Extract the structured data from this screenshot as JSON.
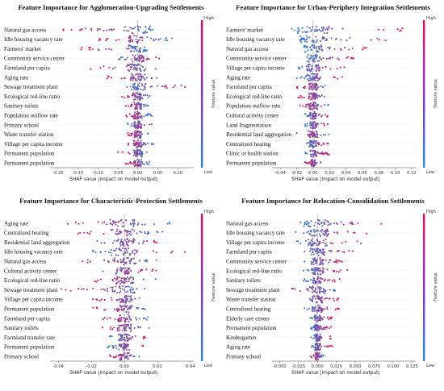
{
  "colors": {
    "low": "#1e88e5",
    "high": "#ff0052"
  },
  "colorbar": {
    "high_label": "High",
    "low_label": "Low",
    "title": "Feature value"
  },
  "chart_data": [
    {
      "type": "scatter",
      "subtype": "shap-beeswarm",
      "title": "Feature Importance for Agglomeration-Upgrading Settlements",
      "xlabel": "SHAP value (impact on model output)",
      "xlim": [
        -0.22,
        0.14
      ],
      "xticks": [
        "-0.20",
        "-0.15",
        "-0.10",
        "-0.05",
        "0.00",
        "0.05",
        "0.10"
      ],
      "tick_values": [
        -0.2,
        -0.15,
        -0.1,
        -0.05,
        0.0,
        0.05,
        0.1
      ],
      "features": [
        "Natural gas access",
        "Idle housing vacancy rate",
        "Farmers' market",
        "Community service center",
        "Farmland per capita",
        "Aging rate",
        "Sewage treatment plant",
        "Ecological red-line ratio",
        "Sanitary toilets",
        "Population outflow rate",
        "Primary school",
        "Waste transfer station",
        "Village per capita income",
        "Permanent population",
        "Permanent population"
      ],
      "spread": [
        [
          -0.2,
          0.05
        ],
        [
          -0.1,
          0.09
        ],
        [
          -0.15,
          0.03
        ],
        [
          -0.05,
          0.06
        ],
        [
          -0.12,
          0.05
        ],
        [
          -0.08,
          0.06
        ],
        [
          -0.03,
          0.12
        ],
        [
          -0.05,
          0.04
        ],
        [
          -0.04,
          0.03
        ],
        [
          -0.04,
          0.04
        ],
        [
          -0.03,
          0.04
        ],
        [
          -0.03,
          0.03
        ],
        [
          -0.04,
          0.04
        ],
        [
          -0.05,
          0.03
        ],
        [
          -0.03,
          0.03
        ]
      ]
    },
    {
      "type": "scatter",
      "subtype": "shap-beeswarm",
      "title": "Feature Importance for Urban-Periphery Integration Settlements",
      "xlabel": "SHAP value (impact on model output)",
      "xlim": [
        -0.05,
        0.125
      ],
      "xticks": [
        "-0.04",
        "-0.02",
        "0.00",
        "0.02",
        "0.04",
        "0.06",
        "0.08",
        "0.10",
        "0.12"
      ],
      "tick_values": [
        -0.04,
        -0.02,
        0.0,
        0.02,
        0.04,
        0.06,
        0.08,
        0.1,
        0.12
      ],
      "features": [
        "Farmers' market",
        "Idle housing vacancy rate",
        "Natural gas access",
        "Community service center",
        "Village per capita income",
        "Aging rate",
        "Farmland per capita",
        "Ecological red-line ratio",
        "Population outflow rate",
        "Cultural activity center",
        "Land fragmentation",
        "Residential land aggregation",
        "Centralized heating",
        "Clinic or health station",
        "Permanent population"
      ],
      "spread": [
        [
          -0.03,
          0.11
        ],
        [
          -0.02,
          0.1
        ],
        [
          -0.01,
          0.07
        ],
        [
          -0.01,
          0.05
        ],
        [
          -0.02,
          0.04
        ],
        [
          -0.02,
          0.04
        ],
        [
          -0.02,
          0.02
        ],
        [
          -0.02,
          0.02
        ],
        [
          -0.02,
          0.02
        ],
        [
          -0.01,
          0.02
        ],
        [
          -0.01,
          0.02
        ],
        [
          -0.02,
          0.02
        ],
        [
          -0.01,
          0.02
        ],
        [
          -0.01,
          0.02
        ],
        [
          -0.01,
          0.01
        ]
      ]
    },
    {
      "type": "scatter",
      "subtype": "shap-beeswarm",
      "title": "Feature Importance for Characteristic-Protection Settlements",
      "xlabel": "SHAP value (impact on model output)",
      "xlim": [
        -0.045,
        0.042
      ],
      "xticks": [
        "-0.04",
        "-0.02",
        "0.00",
        "0.02",
        "0.04"
      ],
      "tick_values": [
        -0.04,
        -0.02,
        0.0,
        0.02,
        0.04
      ],
      "features": [
        "Aging rate",
        "Centralized heating",
        "Residential land aggregation",
        "Idle housing vacancy rate",
        "Natural gas access",
        "Cultural activity center",
        "Ecological red-line ratio",
        "Sewage treatment plant",
        "Village per capita income",
        "Permanent population",
        "Farmland per capita",
        "Sanitary toilets",
        "Farmland transfer rate",
        "Permanent population",
        "Primary school"
      ],
      "spread": [
        [
          -0.035,
          0.03
        ],
        [
          -0.03,
          0.025
        ],
        [
          -0.02,
          0.025
        ],
        [
          -0.02,
          0.04
        ],
        [
          -0.03,
          0.02
        ],
        [
          -0.015,
          0.02
        ],
        [
          -0.02,
          0.02
        ],
        [
          -0.04,
          0.015
        ],
        [
          -0.02,
          0.015
        ],
        [
          -0.02,
          0.015
        ],
        [
          -0.015,
          0.015
        ],
        [
          -0.015,
          0.015
        ],
        [
          -0.01,
          0.015
        ],
        [
          -0.01,
          0.015
        ],
        [
          -0.01,
          0.01
        ]
      ]
    },
    {
      "type": "scatter",
      "subtype": "shap-beeswarm",
      "title": "Feature Importance for Relocation-Consolidation Settlements",
      "xlabel": "SHAP value (impact on model output)",
      "xlim": [
        -0.06,
        0.13
      ],
      "xticks": [
        "-0.050",
        "-0.025",
        "0.000",
        "0.025",
        "0.050",
        "0.075",
        "0.100",
        "0.125"
      ],
      "tick_values": [
        -0.05,
        -0.025,
        0.0,
        0.025,
        0.05,
        0.075,
        0.1,
        0.125
      ],
      "features": [
        "Natural gas access",
        "Idle housing vacancy rate",
        "Village per capita income",
        "Farmland per capita",
        "Community service center",
        "Ecological red-line ratio",
        "Sanitary toilets",
        "Sewage treatment plant",
        "Waste transfer station",
        "Centralized heating",
        "Elderly care center",
        "Permanent population",
        "Kindergarten",
        "Aging rate",
        "Primary school"
      ],
      "spread": [
        [
          -0.03,
          0.1
        ],
        [
          -0.03,
          0.07
        ],
        [
          -0.03,
          0.06
        ],
        [
          -0.02,
          0.05
        ],
        [
          -0.02,
          0.04
        ],
        [
          -0.02,
          0.04
        ],
        [
          -0.02,
          0.03
        ],
        [
          -0.05,
          0.03
        ],
        [
          -0.02,
          0.03
        ],
        [
          -0.02,
          0.03
        ],
        [
          -0.01,
          0.02
        ],
        [
          -0.01,
          0.02
        ],
        [
          -0.01,
          0.02
        ],
        [
          -0.01,
          0.02
        ],
        [
          -0.01,
          0.01
        ]
      ]
    }
  ]
}
